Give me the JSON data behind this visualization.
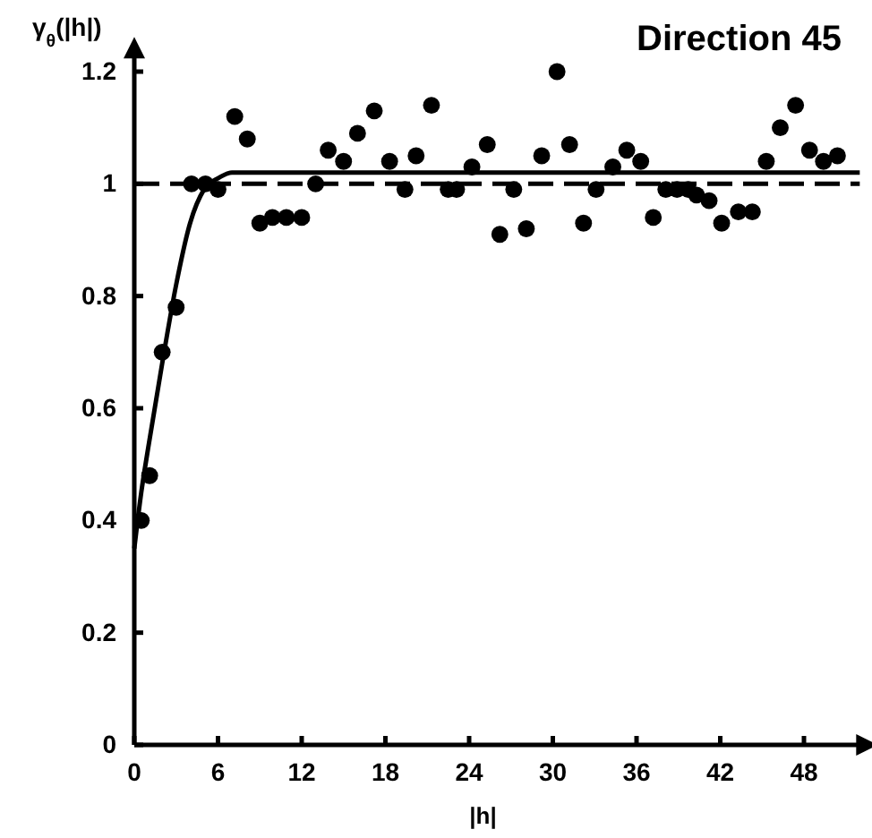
{
  "chart_data": {
    "type": "scatter",
    "title": "Direction 45",
    "xlabel": "|h|",
    "ylabel": "γ$_{θ}$(|h|)",
    "xlim": [
      0,
      52
    ],
    "ylim": [
      0,
      1.23
    ],
    "xticks": [
      0,
      6,
      12,
      18,
      24,
      30,
      36,
      42,
      48
    ],
    "yticks": [
      0,
      0.2,
      0.4,
      0.6,
      0.8,
      1,
      1.2
    ],
    "grid": false,
    "marker": "circle",
    "series": [
      {
        "color": "#000000",
        "x": [
          0.5,
          1.1,
          2.0,
          3.0,
          4.1,
          5.1,
          6.0,
          7.2,
          8.1,
          9.0,
          9.9,
          10.9,
          12.0,
          13.0,
          13.9,
          15.0,
          16.0,
          17.2,
          18.3,
          19.4,
          20.2,
          21.3,
          22.5,
          23.1,
          24.2,
          25.3,
          26.2,
          27.2,
          28.1,
          29.2,
          30.3,
          31.2,
          32.2,
          33.1,
          34.3,
          35.3,
          36.3,
          37.2,
          38.1,
          38.9,
          39.7,
          40.3,
          41.2,
          42.1,
          43.3,
          44.3,
          45.3,
          46.3,
          47.4,
          48.4,
          49.4,
          50.4
        ],
        "values": [
          0.4,
          0.48,
          0.7,
          0.78,
          1.0,
          1.0,
          0.99,
          1.12,
          1.08,
          0.93,
          0.94,
          0.94,
          0.94,
          1.0,
          1.06,
          1.04,
          1.09,
          1.13,
          1.04,
          0.99,
          1.05,
          1.14,
          0.99,
          0.99,
          1.03,
          1.07,
          0.91,
          0.99,
          0.92,
          1.05,
          1.2,
          1.07,
          0.93,
          0.99,
          1.03,
          1.06,
          1.04,
          0.94,
          0.99,
          0.99,
          0.99,
          0.98,
          0.97,
          0.93,
          0.95,
          0.95,
          1.04,
          1.1,
          1.14,
          1.06,
          1.04,
          1.05
        ]
      },
      {
        "type": "line",
        "color": "#000000",
        "line_style": "solid",
        "marker": "none",
        "x": [
          0,
          0.5,
          1,
          2,
          3,
          4,
          5,
          6,
          7,
          8,
          10,
          52
        ],
        "values": [
          0.35,
          0.45,
          0.53,
          0.68,
          0.82,
          0.93,
          0.99,
          1.01,
          1.02,
          1.02,
          1.02,
          1.02
        ]
      }
    ],
    "ref_lines": [
      {
        "axis": "y",
        "value": 1,
        "line_style": "dashed",
        "color": "#000000"
      }
    ]
  }
}
